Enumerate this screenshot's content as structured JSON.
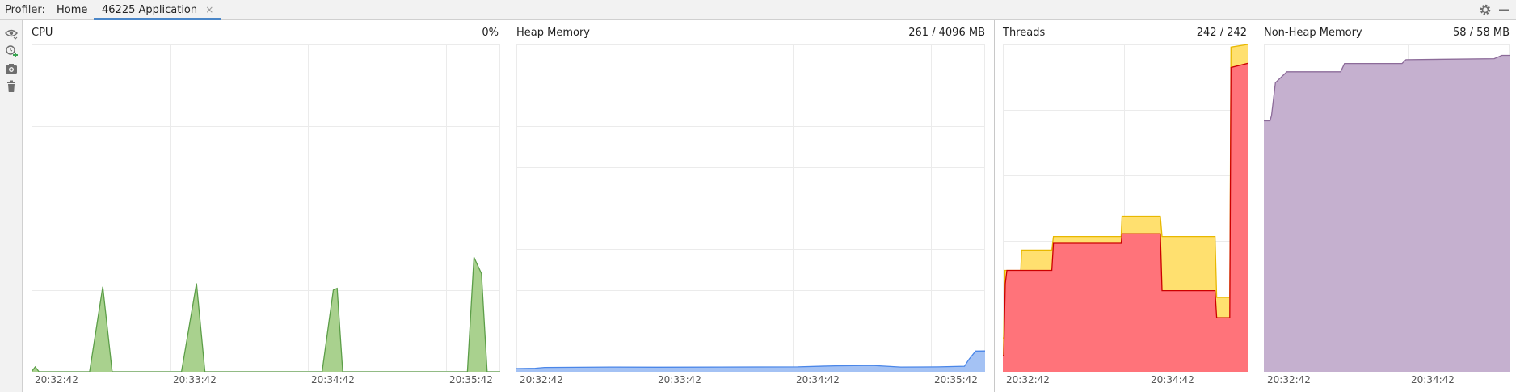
{
  "header": {
    "profiler_label": "Profiler:",
    "tabs": [
      {
        "label": "Home"
      },
      {
        "label": "46225 Application",
        "close": "×"
      }
    ]
  },
  "icons": {
    "top_right": [
      "gear-icon",
      "minimize-icon"
    ],
    "left_toolbar": [
      "eye-icon",
      "add-session-icon",
      "camera-icon",
      "trash-icon"
    ]
  },
  "colors": {
    "cpu": "#5c9e48",
    "cpu_fill": "#a9d18e",
    "heap": "#4a86e8",
    "heap_fill": "#a4c2f4",
    "threads_total_fill": "#ffe06f",
    "threads_total_line": "#e8b800",
    "threads_live_fill": "#ff737a",
    "threads_live_line": "#cc0000",
    "nonheap": "#8c6b99",
    "nonheap_fill": "#c5b0cf",
    "grid": "#ebebeb"
  },
  "chart_data": [
    {
      "id": "cpu",
      "type": "area",
      "title": "CPU",
      "value_label": "0%",
      "x_ticks": [
        "20:32:42",
        "20:33:42",
        "20:34:42",
        "20:35:42"
      ],
      "ylim": [
        0,
        100
      ],
      "series": [
        {
          "values": [
            [
              0,
              0
            ],
            [
              0.4,
              1.5
            ],
            [
              0.8,
              0
            ],
            [
              5,
              0
            ],
            [
              6.2,
              0
            ],
            [
              7.6,
              26
            ],
            [
              8.6,
              0
            ],
            [
              10,
              0
            ],
            [
              15,
              0
            ],
            [
              16,
              0
            ],
            [
              17.6,
              27
            ],
            [
              18.5,
              0
            ],
            [
              30,
              0
            ],
            [
              31,
              0
            ],
            [
              32.2,
              25
            ],
            [
              32.6,
              25.5
            ],
            [
              33.2,
              0
            ],
            [
              45,
              0
            ],
            [
              46.5,
              0
            ],
            [
              47.2,
              35
            ],
            [
              48,
              30
            ],
            [
              48.6,
              0
            ],
            [
              50,
              0
            ]
          ]
        }
      ]
    },
    {
      "id": "heap",
      "type": "area",
      "title": "Heap Memory",
      "value_label": "261 / 4096 MB",
      "x_ticks": [
        "20:32:42",
        "20:33:42",
        "20:34:42",
        "20:35:42"
      ],
      "ylim": [
        0,
        4096
      ],
      "series": [
        {
          "values": [
            [
              0,
              40
            ],
            [
              2,
              45
            ],
            [
              3,
              55
            ],
            [
              10,
              60
            ],
            [
              15,
              58
            ],
            [
              30,
              62
            ],
            [
              34,
              75
            ],
            [
              38,
              80
            ],
            [
              41,
              60
            ],
            [
              45,
              62
            ],
            [
              47.8,
              70
            ],
            [
              48.3,
              160
            ],
            [
              49,
              260
            ],
            [
              50,
              261
            ]
          ]
        }
      ]
    },
    {
      "id": "threads",
      "type": "area",
      "title": "Threads",
      "value_label": "242 / 242",
      "x_ticks": [
        "20:32:42",
        "20:34:42"
      ],
      "ylim": [
        0,
        242
      ],
      "series": [
        {
          "values": [
            [
              0,
              25
            ],
            [
              0.1,
              25
            ],
            [
              0.25,
              75
            ],
            [
              0.5,
              75
            ],
            [
              2.2,
              75
            ],
            [
              2.3,
              90
            ],
            [
              6,
              90
            ],
            [
              6.2,
              100
            ],
            [
              14.5,
              100
            ],
            [
              14.6,
              115
            ],
            [
              19.3,
              115
            ],
            [
              19.5,
              100
            ],
            [
              26,
              100
            ],
            [
              26.2,
              55
            ],
            [
              27.8,
              55
            ],
            [
              27.95,
              240
            ],
            [
              30,
              242
            ]
          ]
        },
        {
          "values": [
            [
              0,
              12
            ],
            [
              0.1,
              12
            ],
            [
              0.3,
              65
            ],
            [
              0.5,
              75
            ],
            [
              2.2,
              75
            ],
            [
              2.3,
              75
            ],
            [
              6,
              75
            ],
            [
              6.2,
              95
            ],
            [
              14.5,
              95
            ],
            [
              14.6,
              102
            ],
            [
              19.3,
              102
            ],
            [
              19.5,
              60
            ],
            [
              26,
              60
            ],
            [
              26.2,
              40
            ],
            [
              27.8,
              40
            ],
            [
              27.95,
              225
            ],
            [
              30,
              228
            ]
          ]
        }
      ]
    },
    {
      "id": "nonheap",
      "type": "area",
      "title": "Non-Heap Memory",
      "value_label": "58 / 58 MB",
      "x_ticks": [
        "20:32:42",
        "20:34:42"
      ],
      "ylim": [
        0,
        60
      ],
      "series": [
        {
          "values": [
            [
              0,
              46
            ],
            [
              0.8,
              46
            ],
            [
              1,
              47
            ],
            [
              1.5,
              53
            ],
            [
              3,
              55
            ],
            [
              10,
              55
            ],
            [
              10.5,
              56.5
            ],
            [
              18,
              56.5
            ],
            [
              18.5,
              57.2
            ],
            [
              30,
              57.4
            ],
            [
              31,
              58
            ],
            [
              32,
              58
            ]
          ]
        }
      ]
    }
  ]
}
